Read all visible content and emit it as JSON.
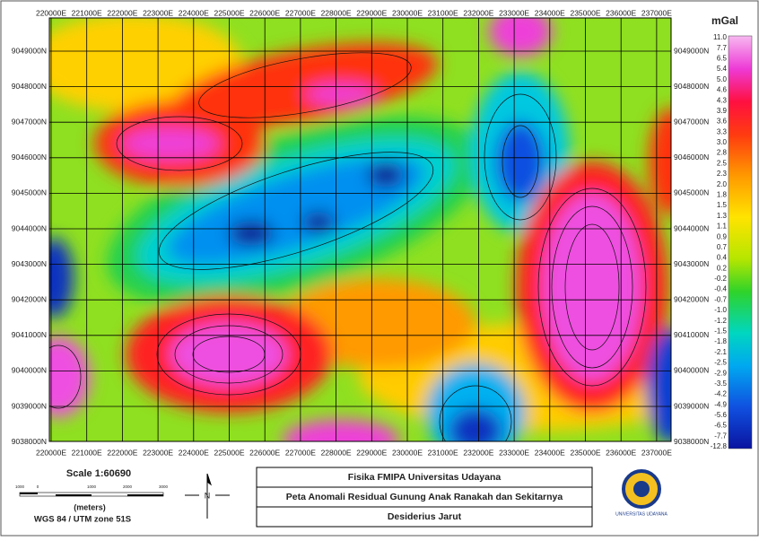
{
  "map": {
    "x_labels": [
      "220000E",
      "221000E",
      "222000E",
      "223000E",
      "224000E",
      "225000E",
      "226000E",
      "227000E",
      "228000E",
      "229000E",
      "230000E",
      "231000E",
      "232000E",
      "233000E",
      "234000E",
      "235000E",
      "236000E",
      "237000E"
    ],
    "y_labels": [
      "9049000N",
      "9048000N",
      "9047000N",
      "9046000N",
      "9045000N",
      "9044000N",
      "9043000N",
      "9042000N",
      "9041000N",
      "9040000N",
      "9039000N",
      "9038000N"
    ]
  },
  "legend": {
    "unit": "mGal",
    "labels": [
      "11.0",
      "7.7",
      "6.5",
      "5.4",
      "5.0",
      "4.6",
      "4.3",
      "3.9",
      "3.6",
      "3.3",
      "3.0",
      "2.8",
      "2.5",
      "2.3",
      "2.0",
      "1.8",
      "1.5",
      "1.3",
      "1.1",
      "0.9",
      "0.7",
      "0.4",
      "0.2",
      "-0.2",
      "-0.4",
      "-0.7",
      "-1.0",
      "-1.2",
      "-1.5",
      "-1.8",
      "-2.1",
      "-2.5",
      "-2.9",
      "-3.5",
      "-4.2",
      "-4.9",
      "-5.6",
      "-6.5",
      "-7.7",
      "-12.8"
    ]
  },
  "scale": {
    "title": "Scale 1:60690",
    "bar_labels": [
      "1000",
      "0",
      "1000",
      "2000",
      "3000"
    ],
    "unit": "(meters)",
    "datum": "WGS 84 / UTM zone 51S"
  },
  "north": "N",
  "title_block": {
    "institution": "Fisika FMIPA Universitas Udayana",
    "title": "Peta Anomali Residual Gunung Anak Ranakah dan Sekitarnya",
    "author": "Desiderius Jarut"
  },
  "logo": {
    "text": "UNIVERSITAS UDAYANA"
  }
}
